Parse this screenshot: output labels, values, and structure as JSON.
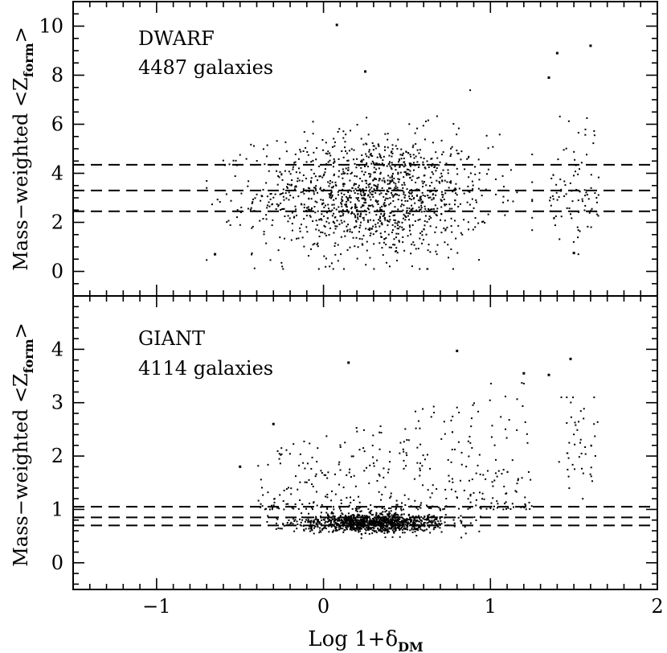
{
  "chart_data": {
    "type": "scatter",
    "x_axis": {
      "label": "Log 1+δDM",
      "label_main": "Log 1+δ",
      "label_sub": "DM",
      "range": [
        -1.5,
        2
      ],
      "ticks": [
        -1,
        0,
        1,
        2
      ],
      "tick_labels": [
        "−1",
        "0",
        "1",
        "2"
      ]
    },
    "panels": [
      {
        "id": "dwarf",
        "title": "DWARF",
        "count_label": "4487 galaxies",
        "ylabel": "Mass−weighted <Zform>",
        "ylabel_main": "Mass−weighted <Z",
        "ylabel_sub": "form",
        "ylabel_end": ">",
        "ylim": [
          -1,
          11
        ],
        "yticks": [
          0,
          2,
          4,
          6,
          8,
          10
        ],
        "ytick_labels": [
          "0",
          "2",
          "4",
          "6",
          "8",
          "10"
        ],
        "reference_lines": [
          4.35,
          3.3,
          2.45
        ],
        "cloud": {
          "n": 1300,
          "x_mean": 0.3,
          "x_sd": 0.35,
          "x_min": -0.7,
          "x_max": 1.25,
          "y_mean": 3.1,
          "y_sd": 1.25,
          "y_min": 0.1,
          "y_max": 8.2
        },
        "outer_cluster": {
          "n": 90,
          "x_min": 1.35,
          "x_max": 1.65,
          "y_mean": 3.2,
          "y_sd": 1.3,
          "y_min": 0.7,
          "y_max": 9.2
        },
        "highlight_points": [
          {
            "x": 0.08,
            "y": 10.05
          },
          {
            "x": 1.6,
            "y": 9.2
          },
          {
            "x": 1.4,
            "y": 8.9
          },
          {
            "x": 1.35,
            "y": 7.9
          },
          {
            "x": 0.25,
            "y": 8.15
          },
          {
            "x": -0.65,
            "y": 0.7
          },
          {
            "x": 1.5,
            "y": 0.75
          }
        ]
      },
      {
        "id": "giant",
        "title": "GIANT",
        "count_label": "4114 galaxies",
        "ylabel": "Mass−weighted <Zform>",
        "ylabel_main": "Mass−weighted <Z",
        "ylabel_sub": "form",
        "ylabel_end": ">",
        "ylim": [
          -0.5,
          5
        ],
        "yticks": [
          0,
          1,
          2,
          3,
          4
        ],
        "ytick_labels": [
          "0",
          "1",
          "2",
          "3",
          "4"
        ],
        "reference_lines": [
          1.05,
          0.85,
          0.7
        ],
        "cloud": {
          "n": 1150,
          "x_mean": 0.3,
          "x_sd": 0.22,
          "x_min": -0.6,
          "x_max": 1.2,
          "y_mean": 0.75,
          "y_sd": 0.09,
          "y_min": 0.45,
          "y_max": 1.05
        },
        "scatter_tail": {
          "n": 380,
          "x_min": -0.4,
          "x_max": 1.25,
          "y_min": 1.0,
          "y_max": 3.6
        },
        "outer_cluster": {
          "n": 45,
          "x_min": 1.4,
          "x_max": 1.65,
          "y_mean": 2.2,
          "y_sd": 0.55,
          "y_min": 1.2,
          "y_max": 3.1
        },
        "highlight_points": [
          {
            "x": 0.8,
            "y": 3.97
          },
          {
            "x": 0.15,
            "y": 3.75
          },
          {
            "x": 1.48,
            "y": 3.82
          },
          {
            "x": 1.35,
            "y": 3.52
          },
          {
            "x": 1.2,
            "y": 3.55
          },
          {
            "x": -0.5,
            "y": 1.8
          },
          {
            "x": -0.3,
            "y": 2.6
          }
        ]
      }
    ]
  }
}
